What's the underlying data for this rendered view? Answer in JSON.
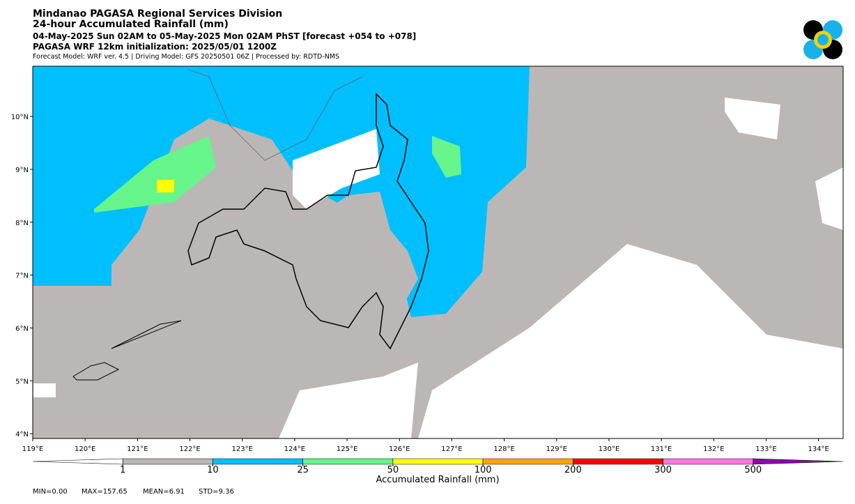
{
  "header": {
    "lines": [
      "Mindanao PAGASA Regional Services Division",
      "24-hour Accumulated Rainfall (mm)",
      "04-May-2025 Sun 02AM to 05-May-2025 Mon 02AM PhST [forecast +054 to +078]",
      "PAGASA WRF 12km initialization: 2025/05/01 1200Z",
      "Forecast Model: WRF ver. 4.5 | Driving Model: GFS 20250501 06Z | Processed by: RDTD-NMS"
    ]
  },
  "map": {
    "xlim": [
      119,
      134.47
    ],
    "ylim": [
      3.91,
      10.95
    ],
    "xticks": [
      {
        "value": 119,
        "label": "119°E"
      },
      {
        "value": 120,
        "label": "120°E"
      },
      {
        "value": 121,
        "label": "121°E"
      },
      {
        "value": 122,
        "label": "122°E"
      },
      {
        "value": 123,
        "label": "123°E"
      },
      {
        "value": 124,
        "label": "124°E"
      },
      {
        "value": 125,
        "label": "125°E"
      },
      {
        "value": 126,
        "label": "126°E"
      },
      {
        "value": 127,
        "label": "127°E"
      },
      {
        "value": 128,
        "label": "128°E"
      },
      {
        "value": 129,
        "label": "129°E"
      },
      {
        "value": 130,
        "label": "130°E"
      },
      {
        "value": 131,
        "label": "131°E"
      },
      {
        "value": 132,
        "label": "132°E"
      },
      {
        "value": 133,
        "label": "133°E"
      },
      {
        "value": 134,
        "label": "134°E"
      }
    ],
    "yticks": [
      {
        "value": 4,
        "label": "4°N"
      },
      {
        "value": 5,
        "label": "5°N"
      },
      {
        "value": 6,
        "label": "6°N"
      },
      {
        "value": 7,
        "label": "7°N"
      },
      {
        "value": 8,
        "label": "8°N"
      },
      {
        "value": 9,
        "label": "9°N"
      },
      {
        "value": 10,
        "label": "10°N"
      }
    ]
  },
  "colorbar": {
    "label": "Accumulated Rainfall (mm)",
    "levels": [
      1,
      10,
      25,
      50,
      100,
      200,
      300,
      500
    ],
    "colors": [
      "#ffffff",
      "#bbb7b7",
      "#00bfff",
      "#66f58a",
      "#ffff00",
      "#ffa500",
      "#ff0000",
      "#ff77dd",
      "#8a0aa8"
    ]
  },
  "stats": [
    "MIN=0.00",
    "MAX=157.65",
    "MEAN=6.91",
    "STD=9.36"
  ]
}
